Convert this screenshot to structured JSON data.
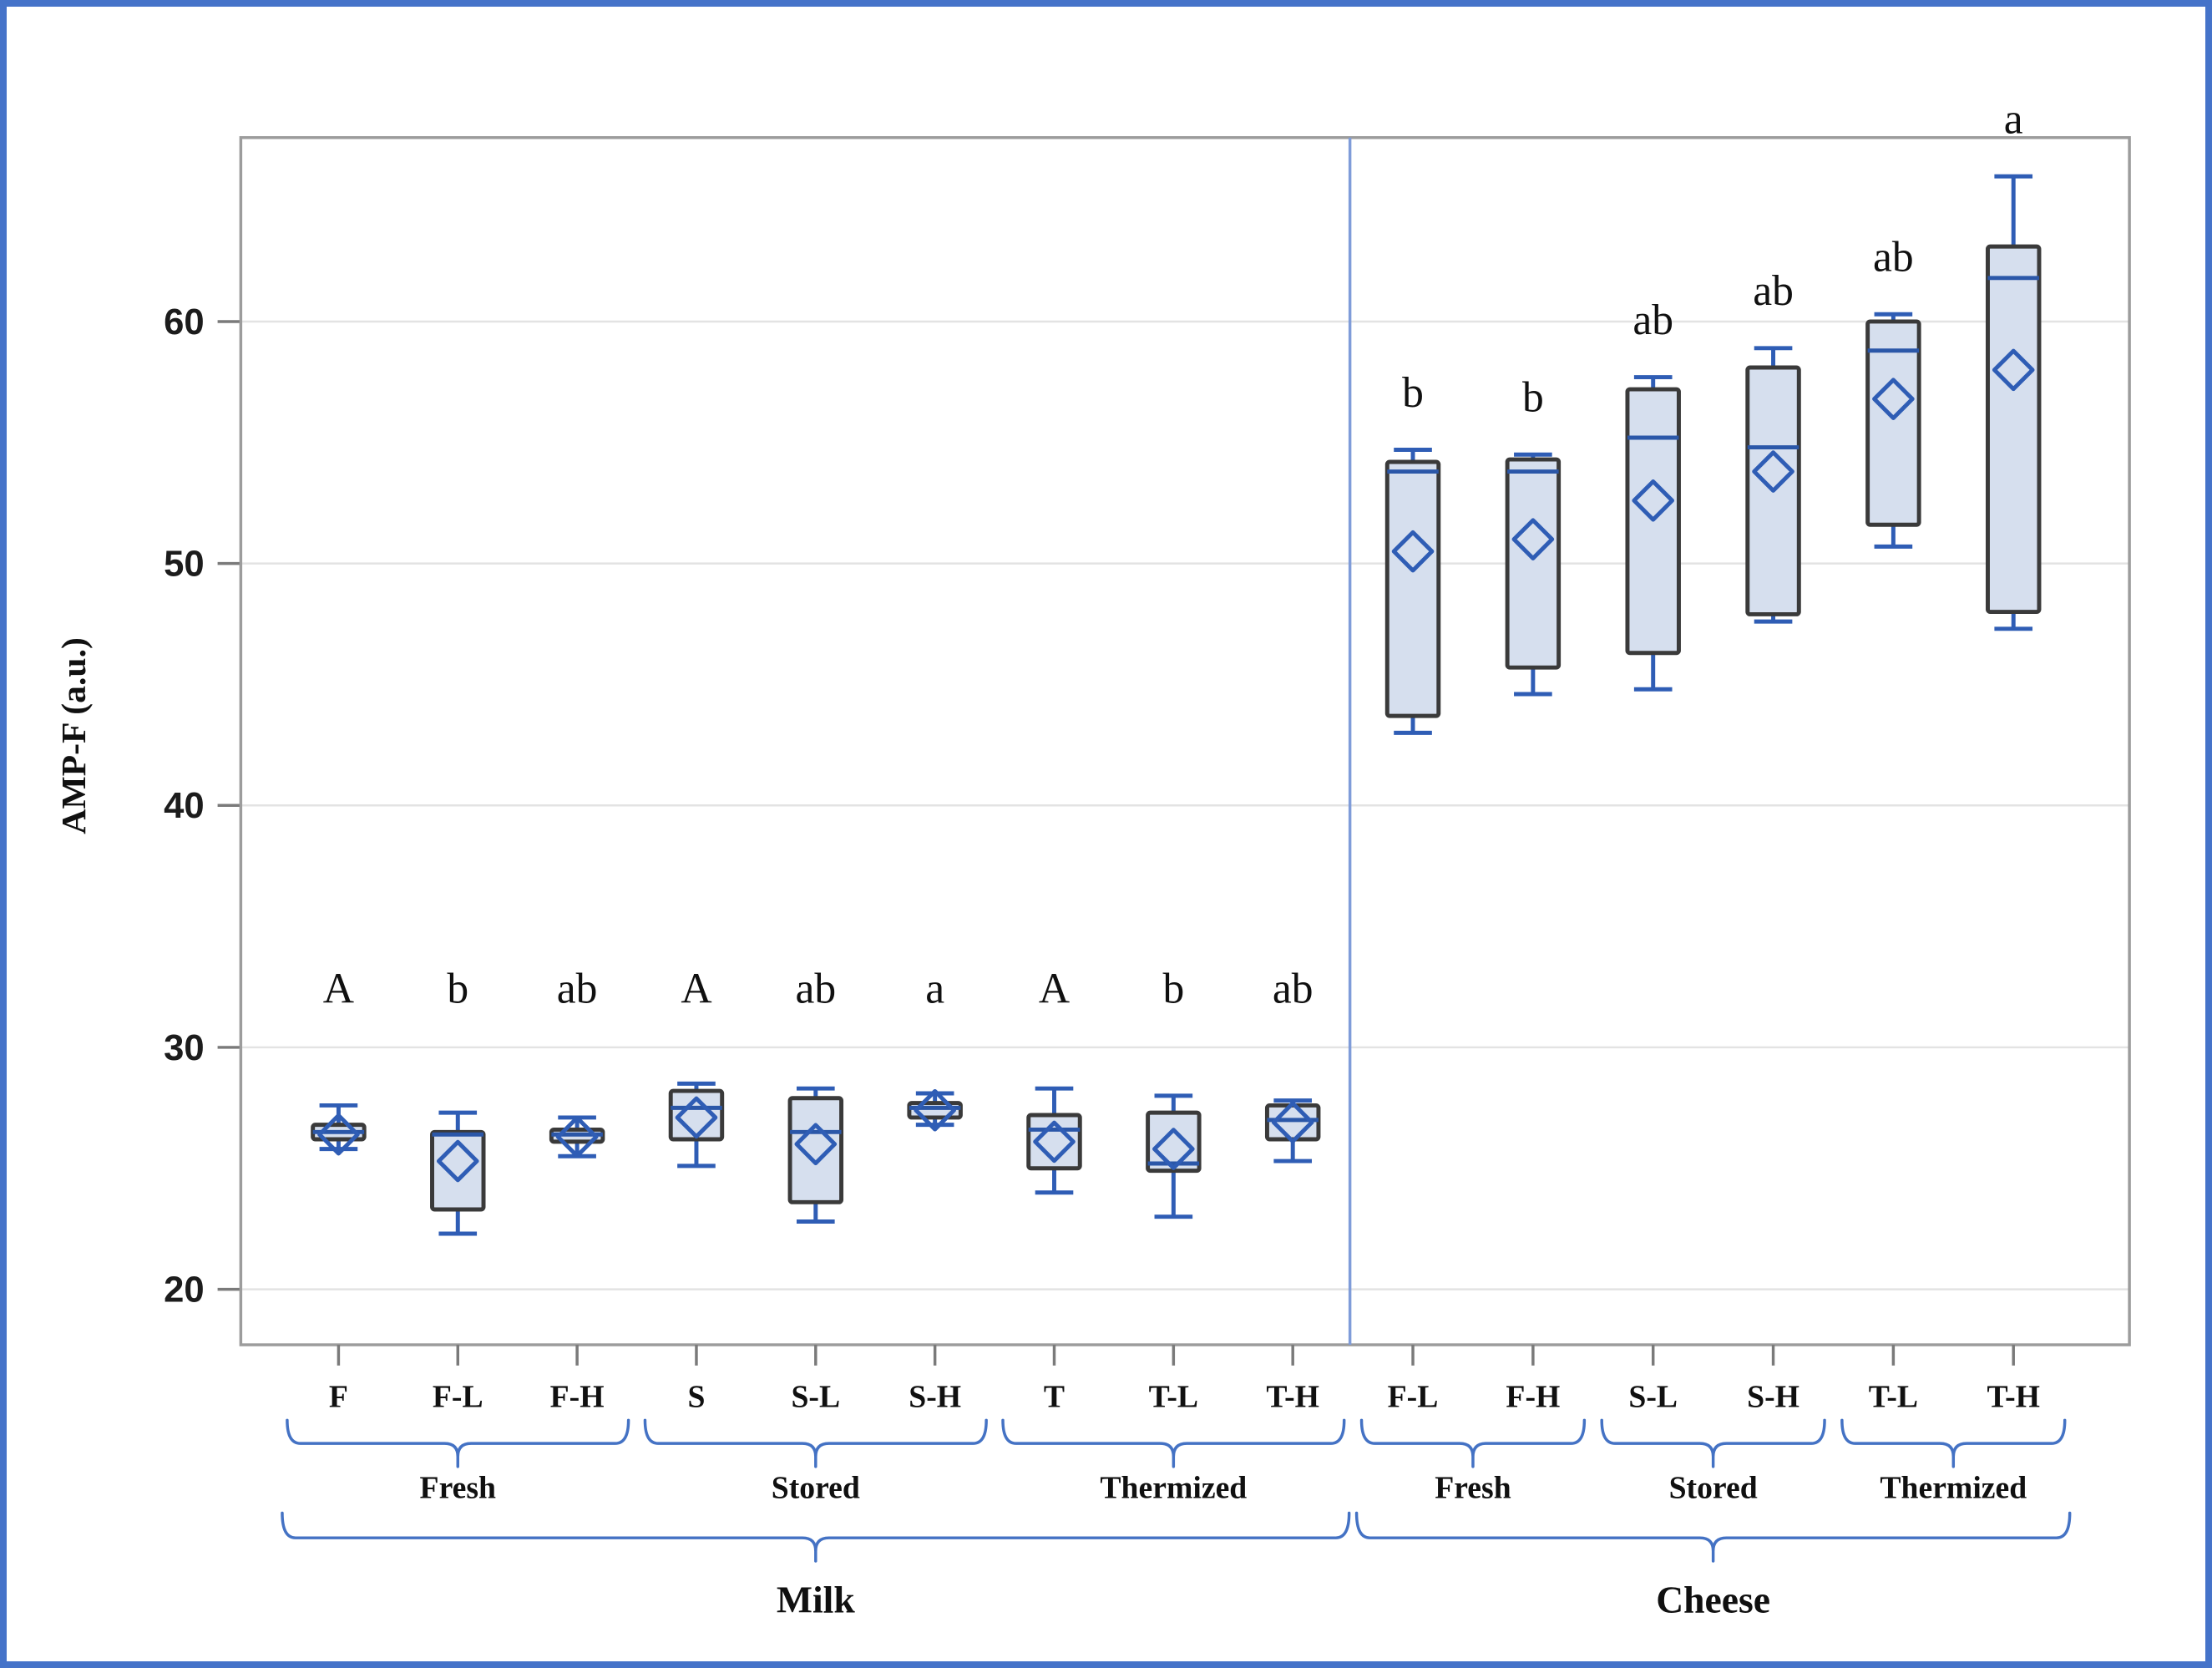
{
  "figure": {
    "type_note": "grouped box-and-whisker plot with mean diamonds and significance letters",
    "border_color": "#4573C9"
  },
  "chart_data": {
    "type": "box",
    "title": "",
    "xlabel": "",
    "ylabel": "AMP-F (a.u.)",
    "yticks": [
      20,
      30,
      40,
      50,
      60
    ],
    "ylim": [
      17.5,
      68.2
    ],
    "grid": "horizontal-light",
    "legend": "none",
    "divider": "vertical line separating Milk and Cheese panels",
    "groups": [
      {
        "label": "Milk",
        "treatments": [
          {
            "label": "Fresh",
            "boxes": [
              {
                "label": "F",
                "letter": "A",
                "whisker_low": 25.8,
                "q1": 26.2,
                "median": 26.5,
                "q3": 26.8,
                "whisker_high": 27.6,
                "mean": 26.4
              },
              {
                "label": "F-L",
                "letter": "b",
                "whisker_low": 22.3,
                "q1": 23.3,
                "median": 26.4,
                "q3": 26.5,
                "whisker_high": 27.3,
                "mean": 25.3
              },
              {
                "label": "F-H",
                "letter": "ab",
                "whisker_low": 25.5,
                "q1": 26.1,
                "median": 26.4,
                "q3": 26.6,
                "whisker_high": 27.1,
                "mean": 26.3
              }
            ]
          },
          {
            "label": "Stored",
            "boxes": [
              {
                "label": "S",
                "letter": "A",
                "whisker_low": 25.1,
                "q1": 26.2,
                "median": 27.5,
                "q3": 28.2,
                "whisker_high": 28.5,
                "mean": 27.1
              },
              {
                "label": "S-L",
                "letter": "ab",
                "whisker_low": 22.8,
                "q1": 23.6,
                "median": 26.5,
                "q3": 27.9,
                "whisker_high": 28.3,
                "mean": 26.0
              },
              {
                "label": "S-H",
                "letter": "a",
                "whisker_low": 26.8,
                "q1": 27.1,
                "median": 27.5,
                "q3": 27.7,
                "whisker_high": 28.1,
                "mean": 27.4
              }
            ]
          },
          {
            "label": "Thermized",
            "boxes": [
              {
                "label": "T",
                "letter": "A",
                "whisker_low": 24.0,
                "q1": 25.0,
                "median": 26.6,
                "q3": 27.2,
                "whisker_high": 28.3,
                "mean": 26.1
              },
              {
                "label": "T-L",
                "letter": "b",
                "whisker_low": 23.0,
                "q1": 24.9,
                "median": 25.2,
                "q3": 27.3,
                "whisker_high": 28.0,
                "mean": 25.8
              },
              {
                "label": "T-H",
                "letter": "ab",
                "whisker_low": 25.3,
                "q1": 26.2,
                "median": 27.0,
                "q3": 27.6,
                "whisker_high": 27.8,
                "mean": 26.9
              }
            ]
          }
        ]
      },
      {
        "label": "Cheese",
        "treatments": [
          {
            "label": "Fresh",
            "boxes": [
              {
                "label": "F-L",
                "letter": "b",
                "whisker_low": 43.0,
                "q1": 43.7,
                "median": 53.8,
                "q3": 54.2,
                "whisker_high": 54.7,
                "mean": 50.5
              },
              {
                "label": "F-H",
                "letter": "b",
                "whisker_low": 44.6,
                "q1": 45.7,
                "median": 53.8,
                "q3": 54.3,
                "whisker_high": 54.5,
                "mean": 51.0
              }
            ]
          },
          {
            "label": "Stored",
            "boxes": [
              {
                "label": "S-L",
                "letter": "ab",
                "whisker_low": 44.8,
                "q1": 46.3,
                "median": 55.2,
                "q3": 57.2,
                "whisker_high": 57.7,
                "mean": 52.6
              },
              {
                "label": "S-H",
                "letter": "ab",
                "whisker_low": 47.6,
                "q1": 47.9,
                "median": 54.8,
                "q3": 58.1,
                "whisker_high": 58.9,
                "mean": 53.8
              }
            ]
          },
          {
            "label": "Thermized",
            "boxes": [
              {
                "label": "T-L",
                "letter": "ab",
                "whisker_low": 50.7,
                "q1": 51.6,
                "median": 58.8,
                "q3": 60.0,
                "whisker_high": 60.3,
                "mean": 56.8
              },
              {
                "label": "T-H",
                "letter": "a",
                "whisker_low": 47.3,
                "q1": 48.0,
                "median": 61.8,
                "q3": 63.1,
                "whisker_high": 66.0,
                "mean": 58.0
              }
            ]
          }
        ]
      }
    ]
  },
  "style": {
    "box_fill": "#D6DFEE",
    "box_stroke": "#3A3A3A",
    "whisker_blue": "#2F5DB5",
    "median_blue": "#2B57A8",
    "brace_blue": "#4472C4",
    "divider_blue": "#7F9CD9",
    "gridline": "#E3E3E3",
    "plot_border": "#9C9C9C",
    "tick_color": "#7A7A7A",
    "text_color": "#101010"
  }
}
